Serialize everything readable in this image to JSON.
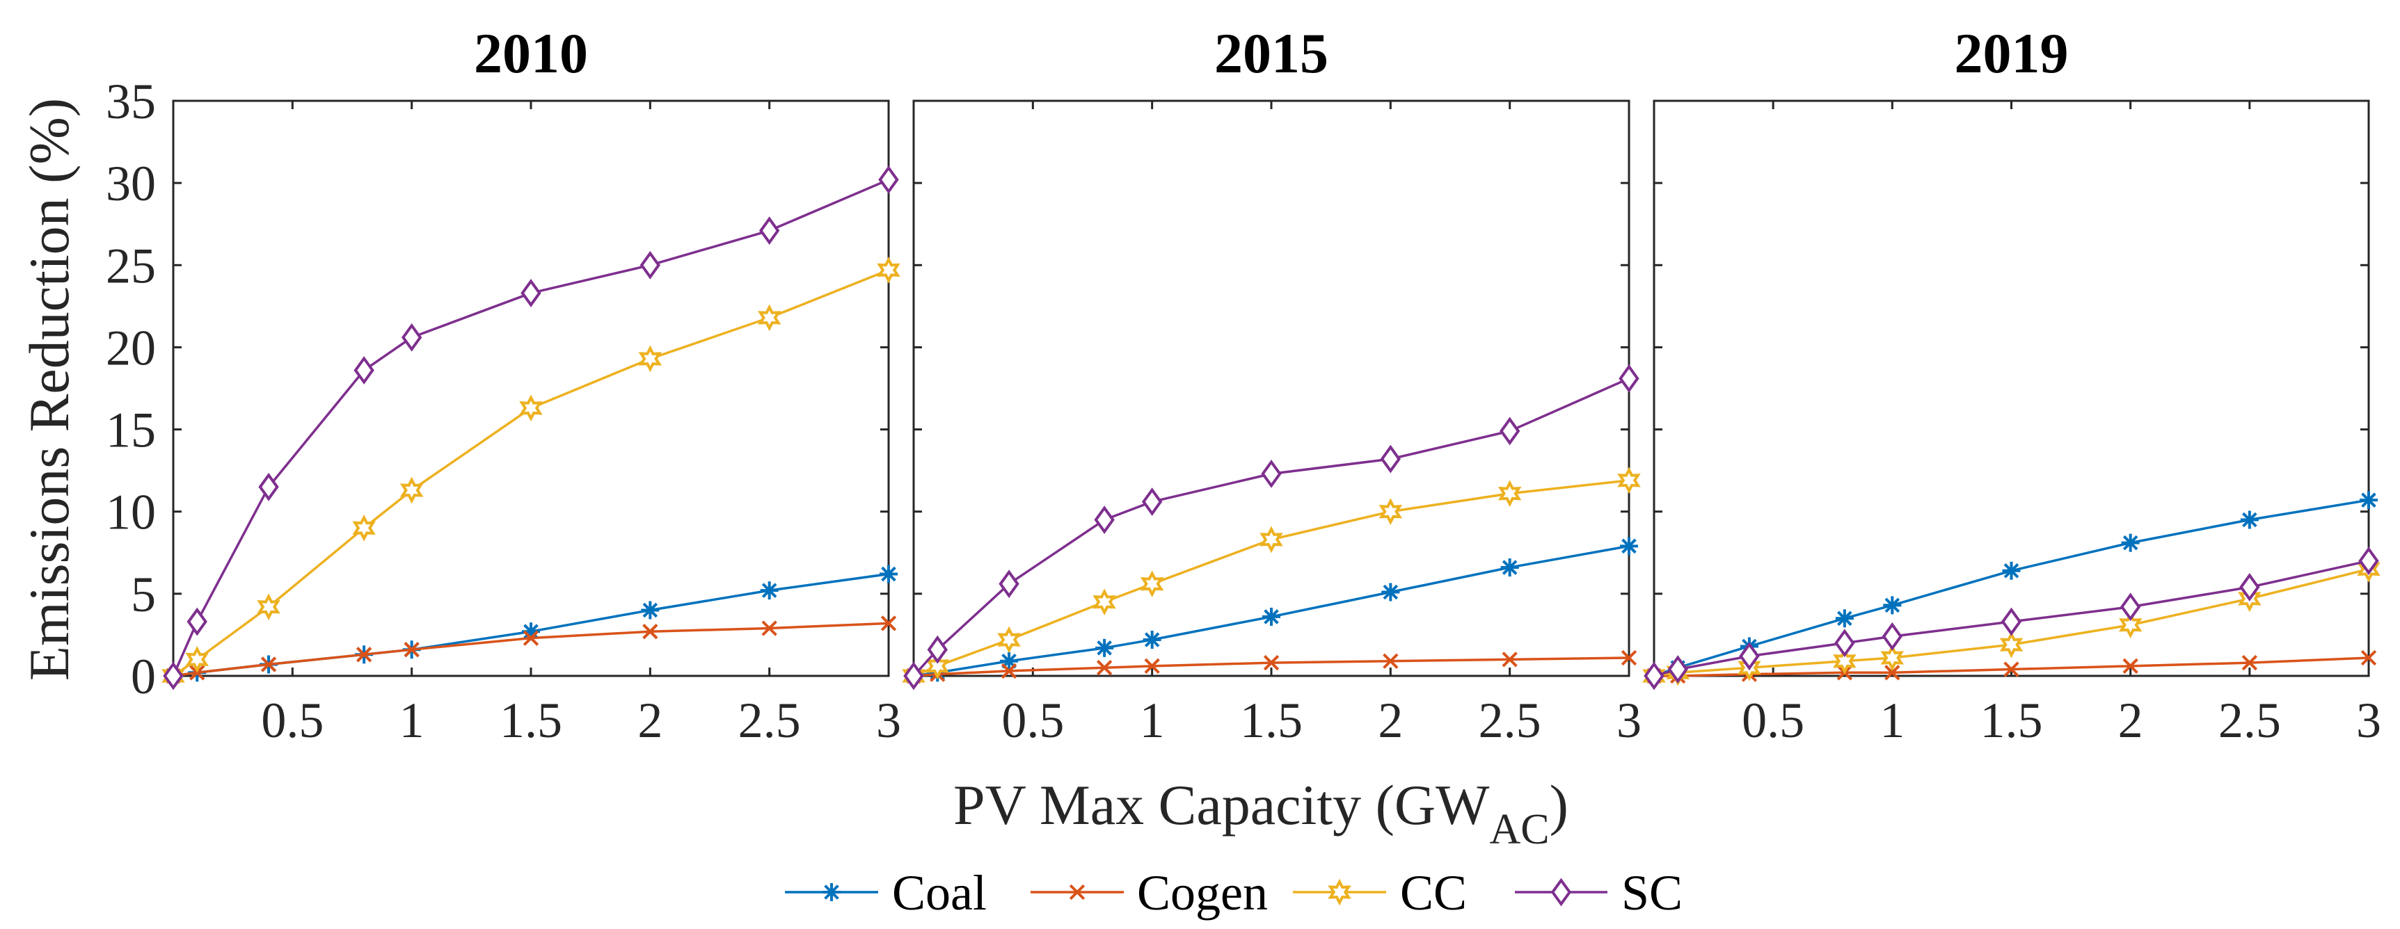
{
  "chart_data": {
    "type": "line",
    "ylabel": "Emissions Reduction (%)",
    "xlabel": "PV Max Capacity (GW",
    "xlabel_subscript": "AC",
    "xlabel_suffix": ")",
    "xlim": [
      0,
      3
    ],
    "ylim": [
      0,
      35
    ],
    "xticks": [
      0.5,
      1,
      1.5,
      2,
      2.5,
      3
    ],
    "xtick_labels": [
      "0.5",
      "1",
      "1.5",
      "2",
      "2.5",
      "3"
    ],
    "yticks": [
      0,
      5,
      10,
      15,
      20,
      25,
      30,
      35
    ],
    "ytick_labels": [
      "0",
      "5",
      "10",
      "15",
      "20",
      "25",
      "30",
      "35"
    ],
    "x": [
      0,
      0.1,
      0.4,
      0.8,
      1,
      1.5,
      2,
      2.5,
      3
    ],
    "series_styles": [
      {
        "name": "Coal",
        "color": "#0072BD",
        "marker": "asterisk"
      },
      {
        "name": "Cogen",
        "color": "#D95319",
        "marker": "cross"
      },
      {
        "name": "CC",
        "color": "#EDB120",
        "marker": "hexagram"
      },
      {
        "name": "SC",
        "color": "#7E2F8E",
        "marker": "diamond"
      }
    ],
    "panels": [
      {
        "title": "2010",
        "series": [
          {
            "name": "Coal",
            "values": [
              0,
              0.2,
              0.7,
              1.3,
              1.6,
              2.7,
              4.0,
              5.2,
              6.2
            ]
          },
          {
            "name": "Cogen",
            "values": [
              0,
              0.2,
              0.7,
              1.3,
              1.6,
              2.3,
              2.7,
              2.9,
              3.2
            ]
          },
          {
            "name": "CC",
            "values": [
              0,
              1.0,
              4.2,
              9.0,
              11.3,
              16.3,
              19.3,
              21.8,
              24.7
            ]
          },
          {
            "name": "SC",
            "values": [
              0,
              3.3,
              11.5,
              18.6,
              20.6,
              23.3,
              25.0,
              27.1,
              30.2
            ]
          }
        ]
      },
      {
        "title": "2015",
        "series": [
          {
            "name": "Coal",
            "values": [
              0,
              0.2,
              0.9,
              1.7,
              2.2,
              3.6,
              5.1,
              6.6,
              7.9
            ]
          },
          {
            "name": "Cogen",
            "values": [
              0,
              0.1,
              0.3,
              0.5,
              0.6,
              0.8,
              0.9,
              1.0,
              1.1
            ]
          },
          {
            "name": "CC",
            "values": [
              0,
              0.6,
              2.2,
              4.5,
              5.6,
              8.3,
              10.0,
              11.1,
              11.9
            ]
          },
          {
            "name": "SC",
            "values": [
              0,
              1.6,
              5.6,
              9.5,
              10.6,
              12.3,
              13.2,
              14.9,
              18.1
            ]
          }
        ]
      },
      {
        "title": "2019",
        "series": [
          {
            "name": "Coal",
            "values": [
              0,
              0.5,
              1.8,
              3.5,
              4.3,
              6.4,
              8.1,
              9.5,
              10.7
            ]
          },
          {
            "name": "Cogen",
            "values": [
              0,
              0.0,
              0.1,
              0.2,
              0.2,
              0.4,
              0.6,
              0.8,
              1.1
            ]
          },
          {
            "name": "CC",
            "values": [
              0,
              0.2,
              0.5,
              0.9,
              1.1,
              1.9,
              3.1,
              4.7,
              6.5
            ]
          },
          {
            "name": "SC",
            "values": [
              0,
              0.4,
              1.2,
              2.0,
              2.4,
              3.3,
              4.2,
              5.4,
              7.0
            ]
          }
        ]
      }
    ],
    "legend": {
      "position": "bottom-center",
      "entries": [
        "Coal",
        "Cogen",
        "CC",
        "SC"
      ]
    }
  }
}
